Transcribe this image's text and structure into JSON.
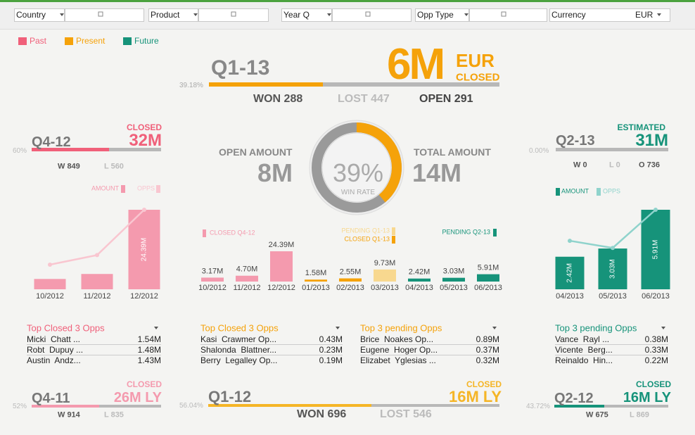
{
  "filters": [
    {
      "label": "Country"
    },
    {
      "label": "Product"
    },
    {
      "label": "Year Q"
    },
    {
      "label": "Opp Type"
    },
    {
      "label": "Currency",
      "value": "EUR"
    }
  ],
  "legend": [
    {
      "name": "Past",
      "color": "#f0607a"
    },
    {
      "name": "Present",
      "color": "#f5a20a"
    },
    {
      "name": "Future",
      "color": "#16937a"
    }
  ],
  "current": {
    "quarter": "Q1-13",
    "amount": "6M",
    "currency": "EUR",
    "status": "CLOSED",
    "pct": {
      "value": 39.18,
      "label": "39.18%"
    },
    "won": "WON 288",
    "lost": "LOST 447",
    "open": "OPEN 291"
  },
  "previous": {
    "status": "CLOSED",
    "quarter": "Q4-12",
    "amount": "32M",
    "pct": {
      "value": 60,
      "label": "60%"
    },
    "won": "W 849",
    "lost": "L 560"
  },
  "next": {
    "status": "ESTIMATED",
    "quarter": "Q2-13",
    "amount": "31M",
    "pct": {
      "value": 0,
      "label": "0.00%"
    },
    "won": "W 0",
    "lost": "L 0",
    "open": "O 736"
  },
  "win_rate": {
    "open_label": "OPEN AMOUNT",
    "open_amount": "8M",
    "total_label": "TOTAL AMOUNT",
    "total_amount": "14M",
    "rate": {
      "value": 39,
      "label": "39%"
    },
    "rate_label": "WIN RATE"
  },
  "charts": {
    "left": {
      "type": "bar",
      "categories": [
        "10/2012",
        "11/2012",
        "12/2012"
      ],
      "series": [
        {
          "name": "AMOUNT",
          "color": "#f49aae",
          "values": [
            3.17,
            4.7,
            24.39
          ],
          "value_labels": [
            null,
            null,
            "24.39M"
          ]
        },
        {
          "name": "OPPS",
          "type": "line",
          "color": "#f9c6d0",
          "values": [
            31,
            43,
            100
          ]
        }
      ]
    },
    "center": {
      "type": "bar",
      "categories": [
        "10/2012",
        "11/2012",
        "12/2012",
        "01/2013",
        "02/2013",
        "03/2013",
        "04/2013",
        "05/2013",
        "06/2013"
      ],
      "series": [
        {
          "name": "CLOSED Q4-12",
          "color": "#f49aae",
          "values": [
            3.17,
            4.7,
            24.39,
            null,
            null,
            null,
            null,
            null,
            null
          ],
          "value_labels": [
            "3.17M",
            "4.70M",
            "24.39M",
            null,
            null,
            null,
            null,
            null,
            null
          ]
        },
        {
          "name": "PENDING Q1-13",
          "color": "#f8d88f",
          "values": [
            null,
            null,
            null,
            null,
            null,
            9.73,
            null,
            null,
            null
          ],
          "value_labels": [
            null,
            null,
            null,
            null,
            null,
            "9.73M",
            null,
            null,
            null
          ]
        },
        {
          "name": "CLOSED Q1-13",
          "color": "#f5a20a",
          "values": [
            null,
            null,
            null,
            1.58,
            2.55,
            null,
            null,
            null,
            null
          ],
          "value_labels": [
            null,
            null,
            null,
            "1.58M",
            "2.55M",
            null,
            null,
            null,
            null
          ]
        },
        {
          "name": "PENDING Q2-13",
          "color": "#16937a",
          "values": [
            null,
            null,
            null,
            null,
            null,
            null,
            2.42,
            3.03,
            5.91
          ],
          "value_labels": [
            null,
            null,
            null,
            null,
            null,
            null,
            "2.42M",
            "3.03M",
            "5.91M"
          ]
        }
      ]
    },
    "right": {
      "type": "bar",
      "categories": [
        "04/2013",
        "05/2013",
        "06/2013"
      ],
      "series": [
        {
          "name": "AMOUNT",
          "color": "#16937a",
          "values": [
            2.42,
            3.03,
            5.91
          ],
          "value_labels": [
            "2.42M",
            "3.03M",
            "5.91M"
          ]
        },
        {
          "name": "OPPS",
          "type": "line",
          "color": "#8fd3cc",
          "values": [
            61,
            52,
            100
          ]
        }
      ]
    }
  },
  "tables": [
    {
      "title": "Top Closed 3 Opps",
      "rows": [
        [
          "Micki  Chatt ...",
          "1.54M"
        ],
        [
          "Robt  Dupuy ...",
          "1.48M"
        ],
        [
          "Austin  Andz...",
          "1.43M"
        ]
      ]
    },
    {
      "title": "Top Closed 3 Opps",
      "rows": [
        [
          "Kasi  Crawmer Op...",
          "0.43M"
        ],
        [
          "Shalonda  Blattner...",
          "0.23M"
        ],
        [
          "Berry  Legalley Op...",
          "0.19M"
        ]
      ]
    },
    {
      "title": "Top 3 pending Opps",
      "rows": [
        [
          "Brice  Noakes Op...",
          "0.89M"
        ],
        [
          "Eugene  Hoger Op...",
          "0.37M"
        ],
        [
          "Elizabet  Yglesias ...",
          "0.32M"
        ]
      ]
    },
    {
      "title": "Top 3 pending Opps",
      "rows": [
        [
          "Vance  Rayl ...",
          "0.38M"
        ],
        [
          "Vicente  Berg...",
          "0.33M"
        ],
        [
          "Reinaldo  Hin...",
          "0.22M"
        ]
      ]
    }
  ],
  "last_year": [
    {
      "pct": {
        "value": 52,
        "label": "52%"
      },
      "quarter": "Q4-11",
      "status": "CLOSED",
      "amount": "26M LY",
      "won": "W 914",
      "lost": "L 835"
    },
    {
      "pct": {
        "value": 56.04,
        "label": "56.04%"
      },
      "quarter": "Q1-12",
      "status": "CLOSED",
      "amount": "16M LY",
      "won": "WON 696",
      "lost": "LOST 546"
    },
    {
      "pct": {
        "value": 43.72,
        "label": "43.72%"
      },
      "quarter": "Q2-12",
      "status": "CLOSED",
      "amount": "16M LY",
      "won": "W 675",
      "lost": "L 869"
    }
  ]
}
